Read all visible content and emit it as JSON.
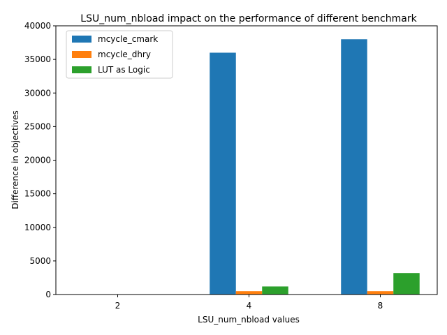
{
  "chart_data": {
    "type": "bar",
    "title": "LSU_num_nbload impact on the performance of different benchmark",
    "xlabel": "LSU_num_nbload values",
    "ylabel": "Difference in objectives",
    "categories": [
      "2",
      "4",
      "8"
    ],
    "ylim": [
      0,
      40000
    ],
    "yticks": [
      0,
      5000,
      10000,
      15000,
      20000,
      25000,
      30000,
      35000,
      40000
    ],
    "grid": false,
    "legend": "top-left",
    "series": [
      {
        "name": "mcycle_cmark",
        "color": "#1f77b4",
        "values": [
          0,
          36000,
          38000
        ]
      },
      {
        "name": "mcycle_dhry",
        "color": "#ff7f0e",
        "values": [
          0,
          500,
          500
        ]
      },
      {
        "name": "LUT as Logic",
        "color": "#2ca02c",
        "values": [
          0,
          1200,
          3200
        ]
      }
    ]
  }
}
